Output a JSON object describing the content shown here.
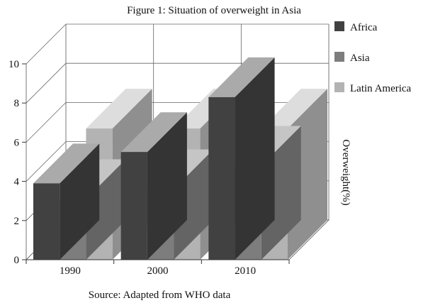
{
  "chart_data": {
    "type": "bar",
    "title": "Figure 1: Situation of overweight in Asia",
    "source": "Source: Adapted from WHO data",
    "ylabel": "Overweight(%)",
    "xlabel": "",
    "categories": [
      "1990",
      "2000",
      "2010"
    ],
    "series": [
      {
        "name": "Africa",
        "values": [
          3.9,
          5.5,
          8.3
        ],
        "color": "#414141"
      },
      {
        "name": "Asia",
        "values": [
          3.1,
          3.6,
          4.8
        ],
        "color": "#7d7d7d"
      },
      {
        "name": "Latin America",
        "values": [
          6.7,
          6.7,
          6.7
        ],
        "color": "#b3b3b3"
      }
    ],
    "ylim": [
      0,
      10
    ],
    "yticks": [
      "0",
      "2",
      "4",
      "6",
      "8",
      "10"
    ],
    "grid": true,
    "legend": "right",
    "style": "3d-bars"
  }
}
